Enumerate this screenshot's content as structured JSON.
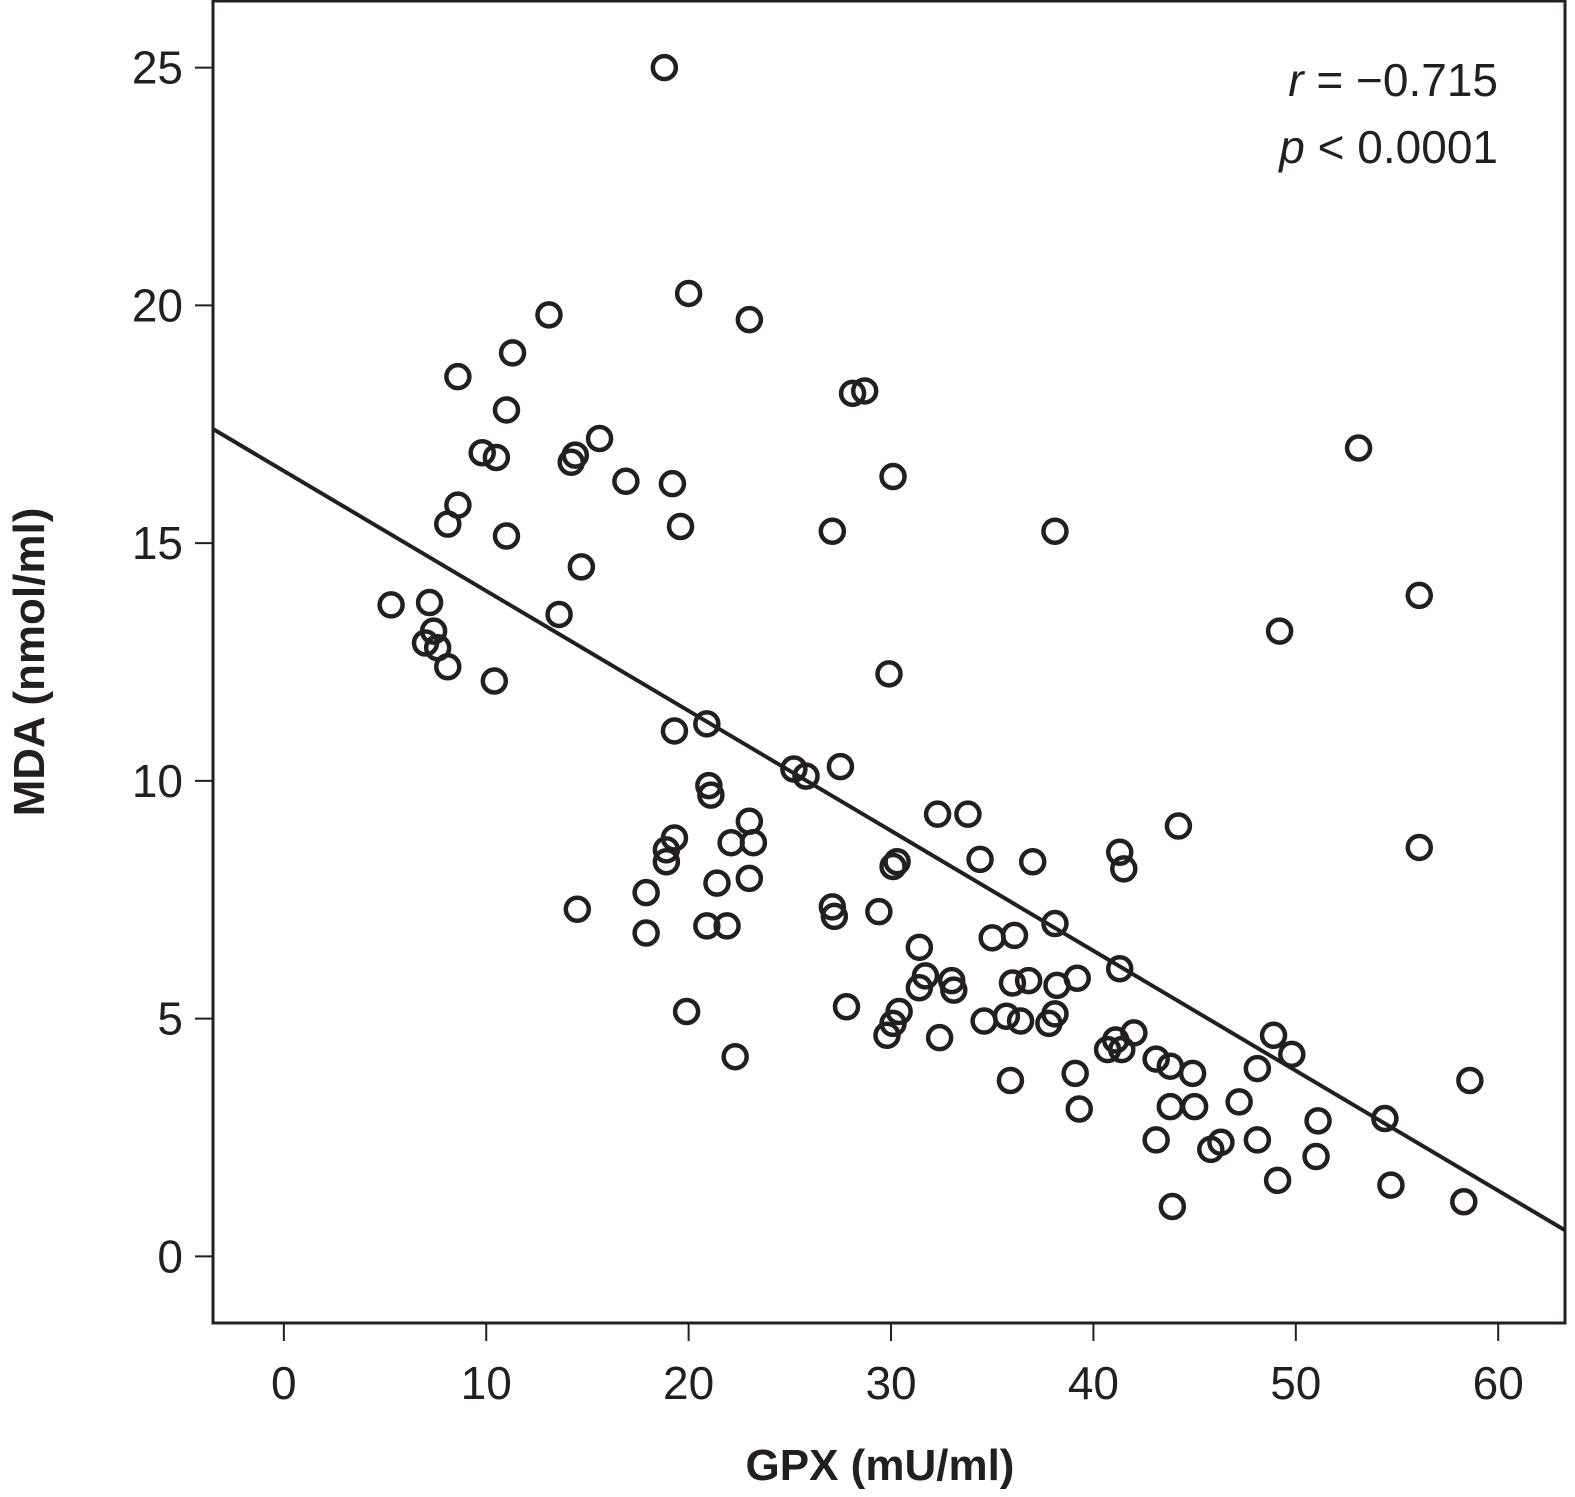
{
  "chart_data": {
    "type": "scatter",
    "title": "",
    "xlabel": "GPX (mU/ml)",
    "ylabel": "MDA (nmol/ml)",
    "xlim": [
      -3.5,
      63.3
    ],
    "ylim": [
      -1.4,
      26.4
    ],
    "xticks": [
      0,
      10,
      20,
      30,
      40,
      50,
      60
    ],
    "yticks": [
      0,
      5,
      10,
      15,
      20,
      25
    ],
    "grid": false,
    "marker": "open-circle",
    "color": "#231f20",
    "annotations": {
      "r_label": "r",
      "r_value": "= −0.715",
      "p_label": "p",
      "p_value": "< 0.0001",
      "placement": "top-right"
    },
    "regression_line": {
      "x": [
        -3.5,
        63.3
      ],
      "y": [
        17.4,
        0.55
      ]
    },
    "series": [
      {
        "name": "observations",
        "points": [
          [
            18.8,
            25.0
          ],
          [
            20.0,
            20.25
          ],
          [
            13.1,
            19.8
          ],
          [
            23.0,
            19.7
          ],
          [
            11.3,
            19.0
          ],
          [
            8.6,
            18.5
          ],
          [
            28.1,
            18.15
          ],
          [
            28.7,
            18.2
          ],
          [
            11.0,
            17.8
          ],
          [
            15.6,
            17.2
          ],
          [
            9.8,
            16.9
          ],
          [
            10.5,
            16.8
          ],
          [
            14.4,
            16.85
          ],
          [
            14.2,
            16.7
          ],
          [
            16.9,
            16.3
          ],
          [
            19.2,
            16.25
          ],
          [
            30.1,
            16.4
          ],
          [
            8.6,
            15.8
          ],
          [
            8.1,
            15.4
          ],
          [
            19.6,
            15.35
          ],
          [
            11.0,
            15.15
          ],
          [
            27.1,
            15.25
          ],
          [
            38.1,
            15.25
          ],
          [
            53.1,
            17.0
          ],
          [
            14.7,
            14.5
          ],
          [
            5.3,
            13.7
          ],
          [
            7.2,
            13.75
          ],
          [
            13.6,
            13.5
          ],
          [
            56.1,
            13.9
          ],
          [
            49.2,
            13.15
          ],
          [
            7.4,
            13.15
          ],
          [
            7.0,
            12.9
          ],
          [
            7.6,
            12.8
          ],
          [
            8.1,
            12.4
          ],
          [
            10.4,
            12.1
          ],
          [
            29.9,
            12.25
          ],
          [
            20.9,
            11.2
          ],
          [
            19.3,
            11.05
          ],
          [
            25.2,
            10.25
          ],
          [
            25.8,
            10.1
          ],
          [
            27.5,
            10.3
          ],
          [
            21.0,
            9.9
          ],
          [
            21.1,
            9.7
          ],
          [
            32.3,
            9.3
          ],
          [
            33.8,
            9.3
          ],
          [
            23.0,
            9.15
          ],
          [
            44.2,
            9.05
          ],
          [
            19.3,
            8.8
          ],
          [
            22.1,
            8.7
          ],
          [
            23.2,
            8.7
          ],
          [
            18.9,
            8.55
          ],
          [
            18.9,
            8.3
          ],
          [
            30.3,
            8.3
          ],
          [
            30.1,
            8.2
          ],
          [
            34.4,
            8.35
          ],
          [
            37.0,
            8.3
          ],
          [
            41.3,
            8.5
          ],
          [
            41.5,
            8.15
          ],
          [
            56.1,
            8.6
          ],
          [
            23.0,
            7.95
          ],
          [
            21.4,
            7.85
          ],
          [
            17.9,
            7.65
          ],
          [
            14.5,
            7.3
          ],
          [
            27.1,
            7.35
          ],
          [
            27.2,
            7.15
          ],
          [
            29.4,
            7.25
          ],
          [
            20.9,
            6.95
          ],
          [
            21.9,
            6.95
          ],
          [
            17.9,
            6.8
          ],
          [
            38.1,
            7.0
          ],
          [
            35.0,
            6.7
          ],
          [
            36.1,
            6.75
          ],
          [
            31.4,
            6.5
          ],
          [
            41.3,
            6.05
          ],
          [
            31.7,
            5.9
          ],
          [
            31.4,
            5.65
          ],
          [
            33.0,
            5.8
          ],
          [
            33.1,
            5.6
          ],
          [
            36.0,
            5.75
          ],
          [
            36.8,
            5.8
          ],
          [
            38.2,
            5.7
          ],
          [
            39.2,
            5.85
          ],
          [
            27.8,
            5.25
          ],
          [
            30.4,
            5.15
          ],
          [
            30.1,
            4.9
          ],
          [
            29.8,
            4.65
          ],
          [
            32.4,
            4.6
          ],
          [
            19.9,
            5.15
          ],
          [
            35.7,
            5.05
          ],
          [
            34.6,
            4.95
          ],
          [
            36.4,
            4.95
          ],
          [
            38.1,
            5.1
          ],
          [
            37.8,
            4.9
          ],
          [
            40.7,
            4.35
          ],
          [
            41.1,
            4.55
          ],
          [
            41.4,
            4.35
          ],
          [
            42.0,
            4.7
          ],
          [
            22.3,
            4.2
          ],
          [
            35.9,
            3.7
          ],
          [
            39.1,
            3.85
          ],
          [
            43.1,
            4.15
          ],
          [
            43.8,
            4.0
          ],
          [
            44.9,
            3.85
          ],
          [
            48.9,
            4.65
          ],
          [
            49.8,
            4.25
          ],
          [
            48.1,
            3.95
          ],
          [
            58.6,
            3.7
          ],
          [
            39.3,
            3.1
          ],
          [
            43.8,
            3.15
          ],
          [
            45.0,
            3.15
          ],
          [
            47.2,
            3.25
          ],
          [
            43.1,
            2.45
          ],
          [
            45.8,
            2.25
          ],
          [
            46.3,
            2.4
          ],
          [
            48.1,
            2.45
          ],
          [
            51.1,
            2.85
          ],
          [
            54.4,
            2.9
          ],
          [
            51.0,
            2.1
          ],
          [
            49.1,
            1.6
          ],
          [
            54.7,
            1.5
          ],
          [
            58.3,
            1.15
          ],
          [
            43.9,
            1.05
          ]
        ]
      }
    ]
  }
}
